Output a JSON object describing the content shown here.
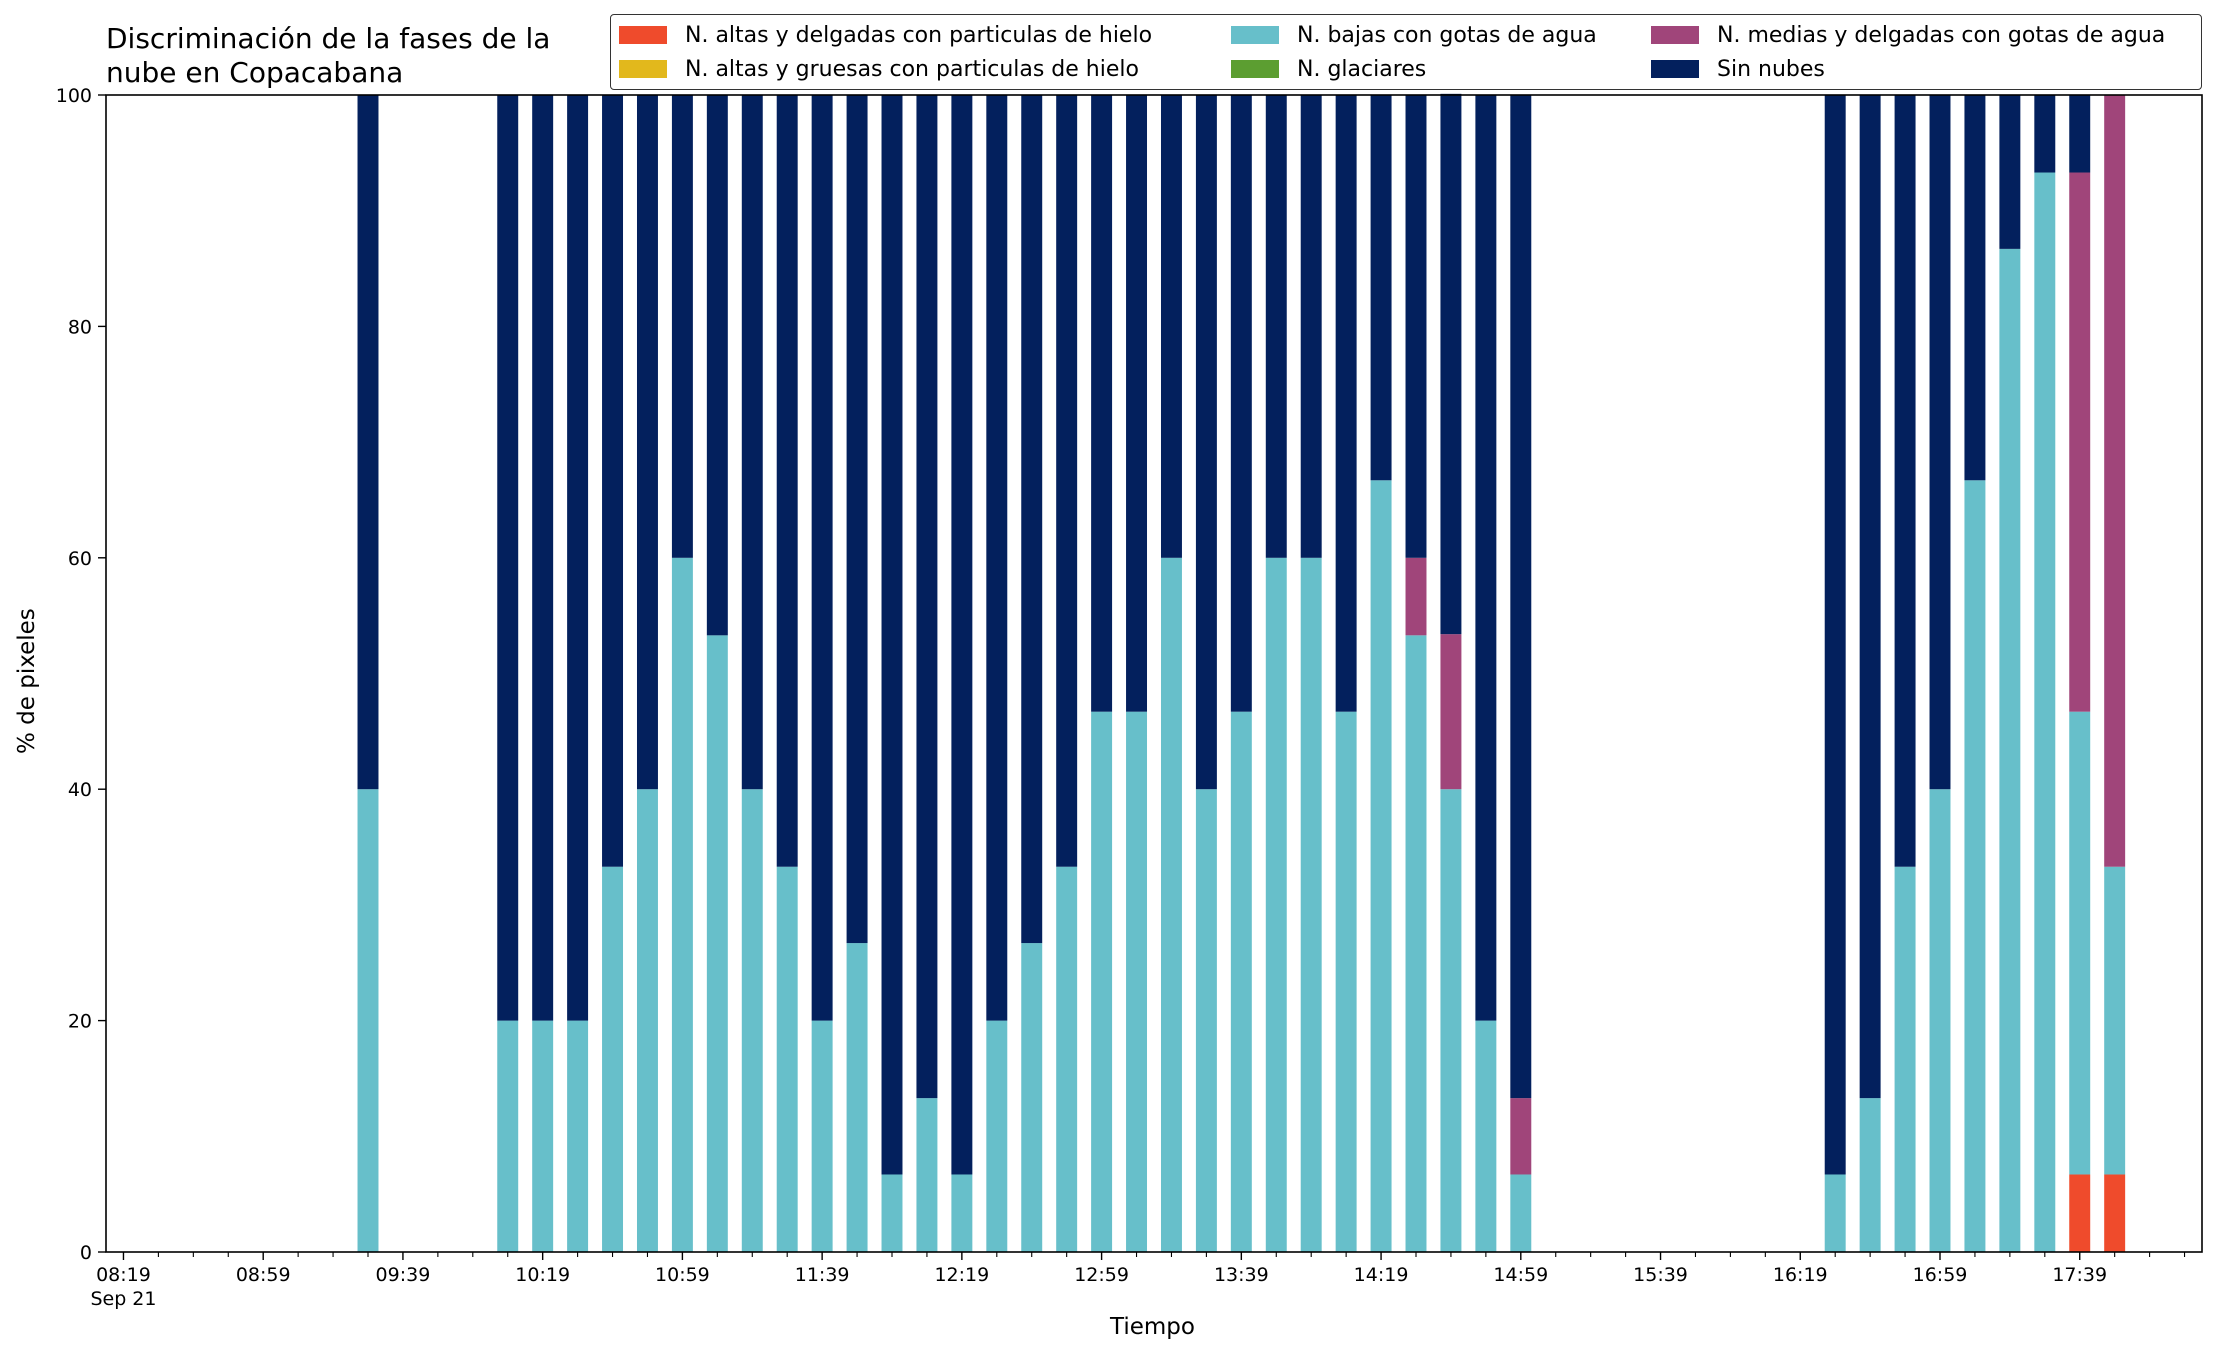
{
  "chart_data": {
    "type": "bar",
    "stacked": true,
    "title_line1": "Discriminación de la fases de la",
    "title_line2": "nube en Copacabana",
    "xlabel": "Tiempo",
    "ylabel": "% de pixeles",
    "ylim": [
      0,
      100
    ],
    "yticks": [
      "0",
      "20",
      "40",
      "60",
      "80",
      "100"
    ],
    "xticks": [
      "08:19",
      "08:59",
      "09:39",
      "10:19",
      "10:59",
      "11:39",
      "12:19",
      "12:59",
      "13:39",
      "14:19",
      "14:59",
      "15:39",
      "16:19",
      "16:59",
      "17:39"
    ],
    "xtick_sublabel": "Sep 21",
    "xlim_minutes": [
      "08:14",
      "18:14"
    ],
    "legend_position": "top-right",
    "grid": false,
    "categories": [
      "09:29",
      "10:09",
      "10:19",
      "10:29",
      "10:39",
      "10:49",
      "10:59",
      "11:09",
      "11:19",
      "11:29",
      "11:39",
      "11:49",
      "11:59",
      "12:09",
      "12:19",
      "12:29",
      "12:39",
      "12:49",
      "12:59",
      "13:09",
      "13:19",
      "13:29",
      "13:39",
      "13:49",
      "13:59",
      "14:09",
      "14:19",
      "14:29",
      "14:39",
      "14:49",
      "14:59",
      "16:29",
      "16:39",
      "16:49",
      "16:59",
      "17:09",
      "17:19",
      "17:29",
      "17:39",
      "17:49"
    ],
    "series": [
      {
        "name": "N. altas y delgadas con particulas de hielo",
        "color": "#ef4b2c",
        "values": [
          0,
          0,
          0,
          0,
          0,
          0,
          0,
          0,
          0,
          0,
          0,
          0,
          0,
          0,
          0,
          0,
          0,
          0,
          0,
          0,
          0,
          0,
          0,
          0,
          0,
          0,
          0,
          0,
          0,
          0,
          0,
          0,
          0,
          0,
          0,
          0,
          0,
          0,
          6.7,
          6.7
        ]
      },
      {
        "name": "N. altas y gruesas con particulas de hielo",
        "color": "#e2b81c",
        "values": [
          0,
          0,
          0,
          0,
          0,
          0,
          0,
          0,
          0,
          0,
          0,
          0,
          0,
          0,
          0,
          0,
          0,
          0,
          0,
          0,
          0,
          0,
          0,
          0,
          0,
          0,
          0,
          0,
          0,
          0,
          0,
          0,
          0,
          0,
          0,
          0,
          0,
          0,
          0,
          0
        ]
      },
      {
        "name": "N. bajas con gotas de agua",
        "color": "#67bfca",
        "values": [
          40,
          20,
          20,
          20,
          33.3,
          40,
          60,
          53.3,
          40,
          33.3,
          20,
          26.7,
          6.7,
          13.3,
          6.7,
          20,
          26.7,
          33.3,
          46.7,
          46.7,
          60,
          40,
          46.7,
          60,
          60,
          46.7,
          66.7,
          53.3,
          40,
          20,
          6.7,
          6.7,
          13.3,
          33.3,
          40,
          66.7,
          86.7,
          93.3,
          40,
          26.6
        ]
      },
      {
        "name": "N. glaciares",
        "color": "#5c9e31",
        "values": [
          0,
          0,
          0,
          0,
          0,
          0,
          0,
          0,
          0,
          0,
          0,
          0,
          0,
          0,
          0,
          0,
          0,
          0,
          0,
          0,
          0,
          0,
          0,
          0,
          0,
          0,
          0,
          0,
          0,
          0,
          0,
          0,
          0,
          0,
          0,
          0,
          0,
          0,
          0,
          0
        ]
      },
      {
        "name": "N. medias y delgadas con gotas de agua",
        "color": "#a0457a",
        "values": [
          0,
          0,
          0,
          0,
          0,
          0,
          0,
          0,
          0,
          0,
          0,
          0,
          0,
          0,
          0,
          0,
          0,
          0,
          0,
          0,
          0,
          0,
          0,
          0,
          0,
          0,
          0,
          6.7,
          13.4,
          0,
          6.6,
          0,
          0,
          0,
          0,
          0,
          0,
          0,
          46.6,
          66.7
        ]
      },
      {
        "name": "Sin nubes",
        "color": "#03205d",
        "values": [
          60,
          80,
          80,
          80,
          66.7,
          60,
          40,
          46.7,
          60,
          66.7,
          80,
          73.3,
          93.3,
          86.7,
          93.3,
          80,
          73.3,
          66.7,
          53.3,
          53.3,
          40,
          60,
          53.3,
          40,
          40,
          53.3,
          33.3,
          40,
          46.7,
          80,
          86.7,
          93.3,
          86.7,
          66.7,
          60,
          33.3,
          13.3,
          6.7,
          6.7,
          0
        ]
      }
    ]
  }
}
